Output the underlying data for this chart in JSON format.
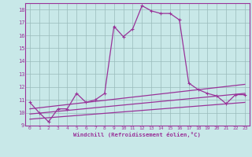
{
  "x": [
    0,
    1,
    2,
    3,
    4,
    5,
    6,
    7,
    8,
    9,
    10,
    11,
    12,
    13,
    14,
    15,
    16,
    17,
    18,
    19,
    20,
    21,
    22,
    23
  ],
  "line1": [
    10.8,
    10.0,
    9.3,
    10.3,
    10.3,
    11.5,
    10.8,
    11.0,
    11.5,
    16.7,
    15.9,
    16.5,
    18.3,
    17.9,
    17.7,
    17.7,
    17.2,
    12.3,
    11.8,
    11.5,
    11.3,
    10.7,
    11.4,
    11.4
  ],
  "line2": [
    [
      0,
      10.3
    ],
    [
      23,
      12.2
    ]
  ],
  "line3": [
    [
      0,
      9.9
    ],
    [
      23,
      11.5
    ]
  ],
  "line4": [
    [
      0,
      9.5
    ],
    [
      23,
      10.8
    ]
  ],
  "ylim": [
    9.0,
    18.5
  ],
  "xlim": [
    -0.5,
    23.5
  ],
  "yticks": [
    9,
    10,
    11,
    12,
    13,
    14,
    15,
    16,
    17,
    18
  ],
  "xticks": [
    0,
    1,
    2,
    3,
    4,
    5,
    6,
    7,
    8,
    9,
    10,
    11,
    12,
    13,
    14,
    15,
    16,
    17,
    18,
    19,
    20,
    21,
    22,
    23
  ],
  "xlabel": "Windchill (Refroidissement éolien,°C)",
  "color": "#993399",
  "bg_color": "#c8e8e8",
  "grid_color": "#99bbbb",
  "font_color": "#993399",
  "spine_color": "#993399"
}
